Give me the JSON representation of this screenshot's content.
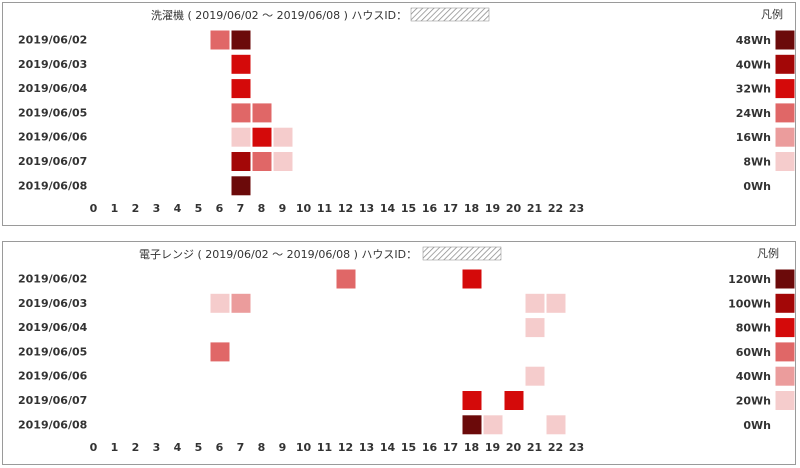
{
  "chart_data": [
    {
      "type": "heatmap",
      "title": "洗濯機 ( 2019/06/02 ～ 2019/06/08 ) ハウスID：",
      "legend_title": "凡例",
      "rows": [
        "2019/06/02",
        "2019/06/03",
        "2019/06/04",
        "2019/06/05",
        "2019/06/06",
        "2019/06/07",
        "2019/06/08"
      ],
      "x_ticks": [
        "0",
        "1",
        "2",
        "3",
        "4",
        "5",
        "6",
        "7",
        "8",
        "9",
        "10",
        "11",
        "12",
        "13",
        "14",
        "15",
        "16",
        "17",
        "18",
        "19",
        "20",
        "21",
        "22",
        "23"
      ],
      "legend": [
        {
          "label": "48Wh",
          "color": "#6b0a0a"
        },
        {
          "label": "40Wh",
          "color": "#a30707"
        },
        {
          "label": "32Wh",
          "color": "#d40a0a"
        },
        {
          "label": "24Wh",
          "color": "#e06767"
        },
        {
          "label": "16Wh",
          "color": "#eb9c9c"
        },
        {
          "label": "8Wh",
          "color": "#f5cccc"
        },
        {
          "label": "0Wh",
          "color": "#ffffff"
        }
      ],
      "cells": [
        {
          "row": "2019/06/02",
          "hour": 6,
          "value": 24
        },
        {
          "row": "2019/06/02",
          "hour": 7,
          "value": 48
        },
        {
          "row": "2019/06/03",
          "hour": 7,
          "value": 32
        },
        {
          "row": "2019/06/04",
          "hour": 7,
          "value": 32
        },
        {
          "row": "2019/06/05",
          "hour": 7,
          "value": 24
        },
        {
          "row": "2019/06/05",
          "hour": 8,
          "value": 24
        },
        {
          "row": "2019/06/06",
          "hour": 7,
          "value": 8
        },
        {
          "row": "2019/06/06",
          "hour": 8,
          "value": 32
        },
        {
          "row": "2019/06/06",
          "hour": 9,
          "value": 8
        },
        {
          "row": "2019/06/07",
          "hour": 7,
          "value": 40
        },
        {
          "row": "2019/06/07",
          "hour": 8,
          "value": 24
        },
        {
          "row": "2019/06/07",
          "hour": 9,
          "value": 8
        },
        {
          "row": "2019/06/08",
          "hour": 7,
          "value": 48
        }
      ]
    },
    {
      "type": "heatmap",
      "title": "電子レンジ ( 2019/06/02 ～ 2019/06/08 ) ハウスID：",
      "legend_title": "凡例",
      "rows": [
        "2019/06/02",
        "2019/06/03",
        "2019/06/04",
        "2019/06/05",
        "2019/06/06",
        "2019/06/07",
        "2019/06/08"
      ],
      "x_ticks": [
        "0",
        "1",
        "2",
        "3",
        "4",
        "5",
        "6",
        "7",
        "8",
        "9",
        "10",
        "11",
        "12",
        "13",
        "14",
        "15",
        "16",
        "17",
        "18",
        "19",
        "20",
        "21",
        "22",
        "23"
      ],
      "legend": [
        {
          "label": "120Wh",
          "color": "#6b0a0a"
        },
        {
          "label": "100Wh",
          "color": "#a30707"
        },
        {
          "label": "80Wh",
          "color": "#d40a0a"
        },
        {
          "label": "60Wh",
          "color": "#e06767"
        },
        {
          "label": "40Wh",
          "color": "#eb9c9c"
        },
        {
          "label": "20Wh",
          "color": "#f5cccc"
        },
        {
          "label": "0Wh",
          "color": "#ffffff"
        }
      ],
      "cells": [
        {
          "row": "2019/06/02",
          "hour": 12,
          "value": 60
        },
        {
          "row": "2019/06/02",
          "hour": 18,
          "value": 80
        },
        {
          "row": "2019/06/03",
          "hour": 6,
          "value": 20
        },
        {
          "row": "2019/06/03",
          "hour": 7,
          "value": 40
        },
        {
          "row": "2019/06/03",
          "hour": 21,
          "value": 20
        },
        {
          "row": "2019/06/03",
          "hour": 22,
          "value": 20
        },
        {
          "row": "2019/06/04",
          "hour": 21,
          "value": 20
        },
        {
          "row": "2019/06/05",
          "hour": 6,
          "value": 60
        },
        {
          "row": "2019/06/06",
          "hour": 21,
          "value": 20
        },
        {
          "row": "2019/06/07",
          "hour": 18,
          "value": 80
        },
        {
          "row": "2019/06/07",
          "hour": 20,
          "value": 80
        },
        {
          "row": "2019/06/08",
          "hour": 18,
          "value": 120
        },
        {
          "row": "2019/06/08",
          "hour": 19,
          "value": 20
        },
        {
          "row": "2019/06/08",
          "hour": 22,
          "value": 20
        }
      ]
    }
  ]
}
